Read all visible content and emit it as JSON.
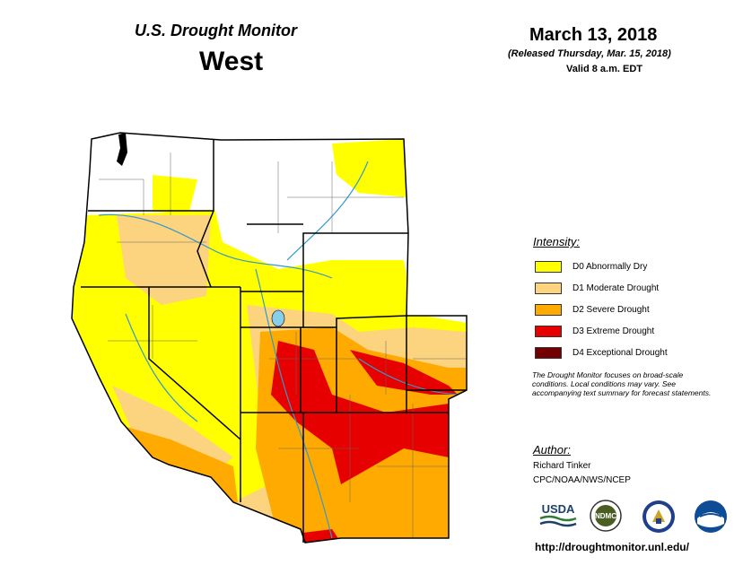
{
  "header": {
    "title": "U.S. Drought Monitor",
    "region": "West",
    "date": "March 13, 2018",
    "released": "(Released Thursday, Mar. 15, 2018)",
    "valid": "Valid 8 a.m. EDT"
  },
  "legend": {
    "title": "Intensity:",
    "items": [
      {
        "label": "D0 Abnormally Dry",
        "color": "#ffff00"
      },
      {
        "label": "D1 Moderate Drought",
        "color": "#fcd37f"
      },
      {
        "label": "D2 Severe Drought",
        "color": "#ffaa00"
      },
      {
        "label": "D3 Extreme Drought",
        "color": "#e60000"
      },
      {
        "label": "D4 Exceptional Drought",
        "color": "#730000"
      }
    ]
  },
  "note": "The Drought Monitor focuses on broad-scale conditions. Local conditions may vary. See accompanying text summary for forecast statements.",
  "author": {
    "title": "Author:",
    "name": "Richard Tinker",
    "org": "CPC/NOAA/NWS/NCEP"
  },
  "logos": {
    "usda": "USDA",
    "ndmc": "NDMC"
  },
  "url": "http://droughtmonitor.unl.edu/",
  "colors": {
    "river": "#3399cc",
    "border": "#000000"
  }
}
